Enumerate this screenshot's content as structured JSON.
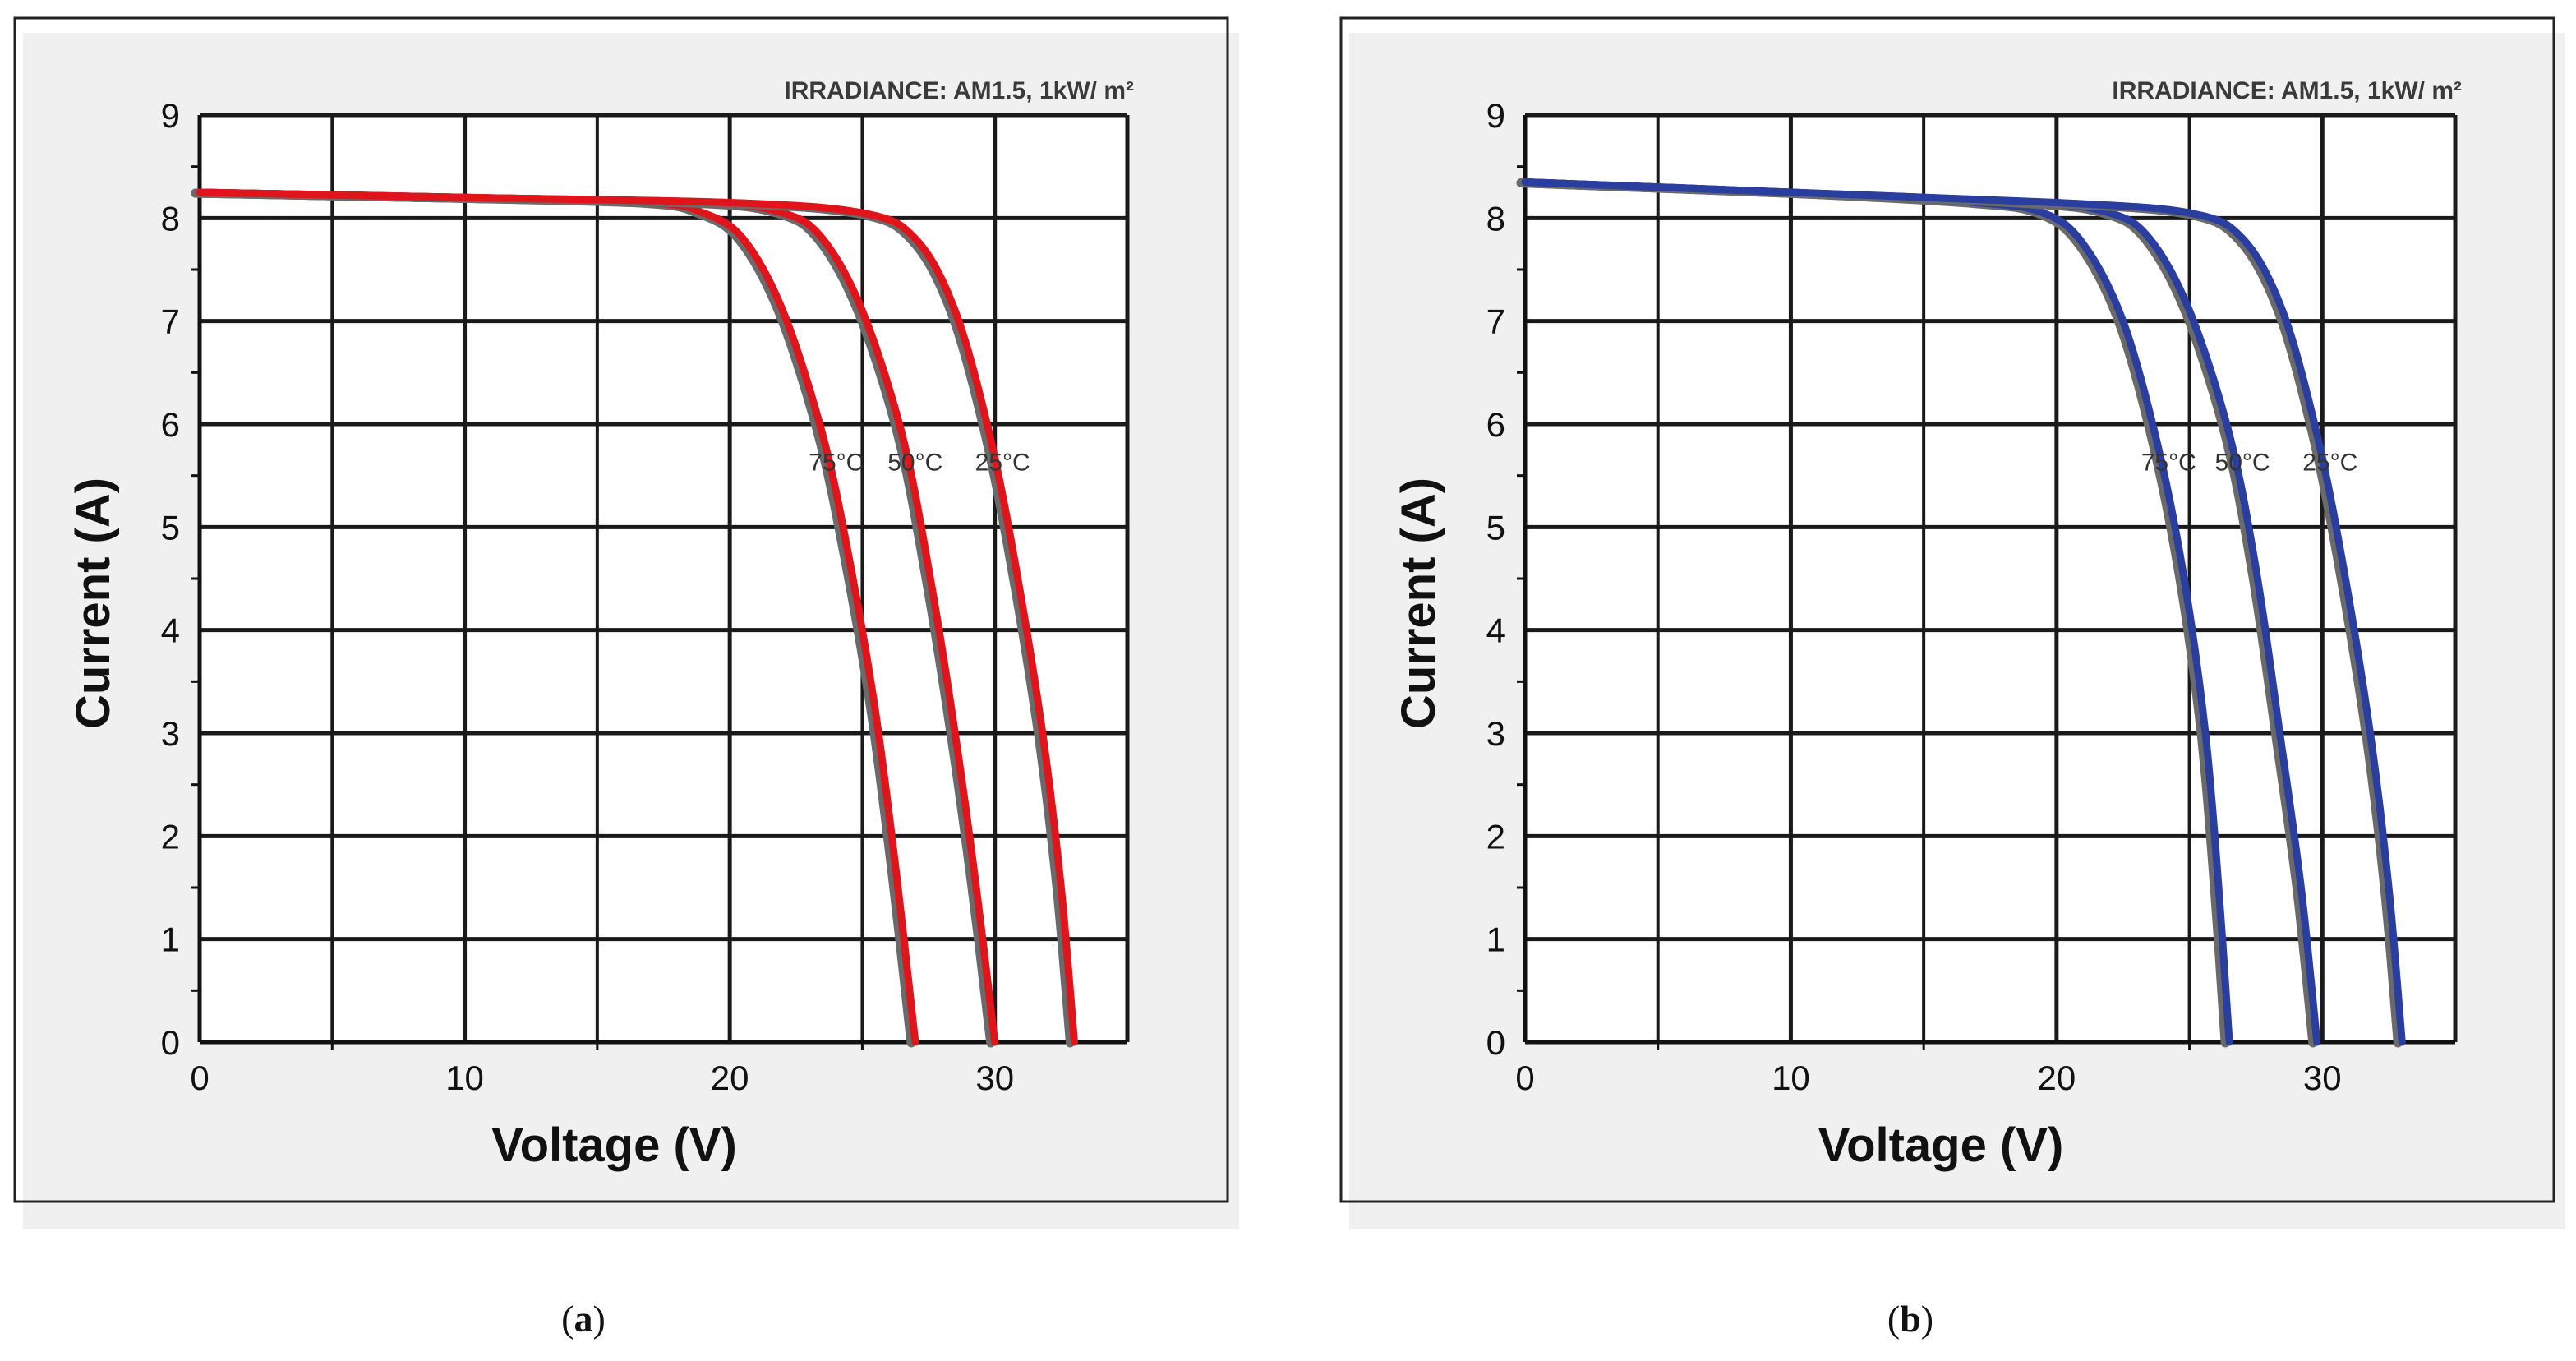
{
  "figure": {
    "caption_left": "(",
    "caption_right": ")",
    "panels": [
      {
        "id": "a",
        "caption": "a"
      },
      {
        "id": "b",
        "caption": "b"
      }
    ]
  },
  "chart_data": [
    {
      "type": "line",
      "panel": "a",
      "annotation": "IRRADIANCE: AM1.5, 1kW/ m²",
      "xlabel": "Voltage (V)",
      "ylabel": "Current (A)",
      "xlim": [
        0,
        35
      ],
      "ylim": [
        0,
        9
      ],
      "xticks": [
        0,
        10,
        20,
        30
      ],
      "yticks": [
        0,
        1,
        2,
        3,
        4,
        5,
        6,
        7,
        8,
        9
      ],
      "grid": true,
      "overlay_color": "#e0141b",
      "reference_color": "#6a6a6a",
      "series": [
        {
          "name": "75°C",
          "voc": 27.0,
          "isc": 8.25,
          "knee_v": 20.0,
          "points": [
            [
              0,
              8.25
            ],
            [
              10,
              8.2
            ],
            [
              17,
              8.15
            ],
            [
              19,
              8.05
            ],
            [
              20.5,
              7.8
            ],
            [
              22,
              7.1
            ],
            [
              23.5,
              5.9
            ],
            [
              24.5,
              4.7
            ],
            [
              25.5,
              3.2
            ],
            [
              26.3,
              1.6
            ],
            [
              27.0,
              0
            ]
          ]
        },
        {
          "name": "50°C",
          "voc": 30.0,
          "isc": 8.25,
          "knee_v": 23.0,
          "points": [
            [
              0,
              8.25
            ],
            [
              10,
              8.2
            ],
            [
              19,
              8.15
            ],
            [
              22,
              8.05
            ],
            [
              23.5,
              7.8
            ],
            [
              25,
              7.1
            ],
            [
              26.5,
              5.9
            ],
            [
              27.5,
              4.6
            ],
            [
              28.5,
              3.0
            ],
            [
              29.3,
              1.5
            ],
            [
              30.0,
              0
            ]
          ]
        },
        {
          "name": "25°C",
          "voc": 33.0,
          "isc": 8.25,
          "knee_v": 26.0,
          "points": [
            [
              0,
              8.25
            ],
            [
              10,
              8.2
            ],
            [
              20,
              8.15
            ],
            [
              25,
              8.05
            ],
            [
              27,
              7.8
            ],
            [
              28.5,
              7.1
            ],
            [
              29.8,
              5.9
            ],
            [
              30.8,
              4.6
            ],
            [
              31.8,
              3.0
            ],
            [
              32.5,
              1.5
            ],
            [
              33.0,
              0
            ]
          ]
        }
      ]
    },
    {
      "type": "line",
      "panel": "b",
      "annotation": "IRRADIANCE: AM1.5, 1kW/ m²",
      "xlabel": "Voltage (V)",
      "ylabel": "Current (A)",
      "xlim": [
        0,
        35
      ],
      "ylim": [
        0,
        9
      ],
      "xticks": [
        0,
        10,
        20,
        30
      ],
      "yticks": [
        0,
        1,
        2,
        3,
        4,
        5,
        6,
        7,
        8,
        9
      ],
      "grid": true,
      "overlay_color": "#2a3ea0",
      "reference_color": "#6a6a6a",
      "series": [
        {
          "name": "75°C",
          "voc": 26.5,
          "isc": 8.35,
          "knee_v": 19.5,
          "points": [
            [
              0,
              8.35
            ],
            [
              10,
              8.25
            ],
            [
              17,
              8.15
            ],
            [
              19.5,
              8.05
            ],
            [
              21,
              7.75
            ],
            [
              22.5,
              7.0
            ],
            [
              23.8,
              5.8
            ],
            [
              24.8,
              4.5
            ],
            [
              25.6,
              3.0
            ],
            [
              26.1,
              1.5
            ],
            [
              26.5,
              0
            ]
          ]
        },
        {
          "name": "50°C",
          "voc": 29.8,
          "isc": 8.35,
          "knee_v": 22.5,
          "points": [
            [
              0,
              8.35
            ],
            [
              10,
              8.25
            ],
            [
              19,
              8.15
            ],
            [
              22,
              8.05
            ],
            [
              23.5,
              7.8
            ],
            [
              25,
              7.1
            ],
            [
              26.5,
              5.9
            ],
            [
              27.5,
              4.6
            ],
            [
              28.4,
              3.0
            ],
            [
              29.2,
              1.5
            ],
            [
              29.8,
              0
            ]
          ]
        },
        {
          "name": "25°C",
          "voc": 33.0,
          "isc": 8.35,
          "knee_v": 26.0,
          "points": [
            [
              0,
              8.35
            ],
            [
              10,
              8.25
            ],
            [
              20,
              8.15
            ],
            [
              25,
              8.05
            ],
            [
              27,
              7.8
            ],
            [
              28.5,
              7.1
            ],
            [
              29.8,
              5.9
            ],
            [
              30.8,
              4.6
            ],
            [
              31.8,
              3.0
            ],
            [
              32.5,
              1.5
            ],
            [
              33.0,
              0
            ]
          ]
        }
      ]
    }
  ]
}
